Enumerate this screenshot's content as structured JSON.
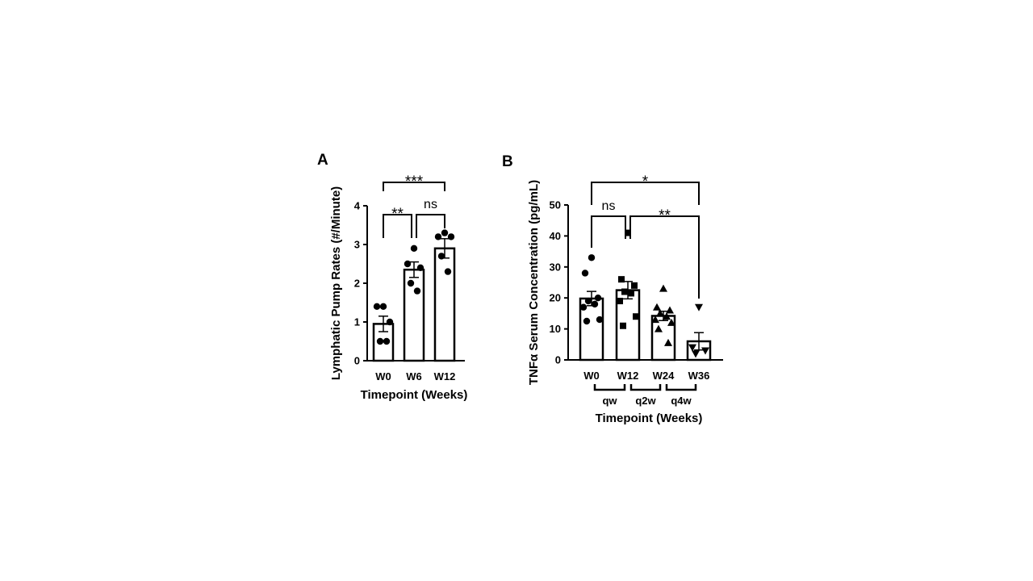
{
  "figure": {
    "panel_a_label": "A",
    "panel_b_label": "B"
  },
  "chart_data": [
    {
      "panel": "A",
      "type": "bar",
      "categories": [
        "W0",
        "W6",
        "W12"
      ],
      "values": [
        0.95,
        2.35,
        2.9
      ],
      "error": [
        0.2,
        0.2,
        0.25
      ],
      "points": [
        [
          1.4,
          1.4,
          1.0,
          0.5,
          0.5
        ],
        [
          2.9,
          2.5,
          2.4,
          2.0,
          1.8
        ],
        [
          3.3,
          3.2,
          3.2,
          2.7,
          2.3
        ]
      ],
      "xlabel": "Timepoint (Weeks)",
      "ylabel": "Lymphatic Pump Rates (#/Minute)",
      "ylim": [
        0,
        4
      ],
      "yticks": [
        "0",
        "1",
        "2",
        "3",
        "4"
      ],
      "marker": "circle",
      "comparisons": [
        {
          "from": "W0",
          "to": "W6",
          "label": "**"
        },
        {
          "from": "W6",
          "to": "W12",
          "label": "ns"
        },
        {
          "from": "W0",
          "to": "W12",
          "label": "***"
        }
      ]
    },
    {
      "panel": "B",
      "type": "bar",
      "categories": [
        "W0",
        "W12",
        "W24",
        "W36"
      ],
      "values": [
        19.8,
        22.5,
        14.2,
        6.0
      ],
      "error": [
        2.3,
        2.8,
        1.5,
        2.8
      ],
      "points": [
        [
          33,
          28,
          20,
          19,
          18,
          17,
          13,
          12.5
        ],
        [
          41,
          26,
          24,
          22,
          21.5,
          19,
          14,
          11
        ],
        [
          23,
          17,
          16,
          15,
          14,
          13,
          12,
          10,
          5.5
        ],
        [
          17,
          4,
          3,
          2
        ]
      ],
      "markers": [
        "circle",
        "square",
        "triangle-up",
        "triangle-down"
      ],
      "xlabel": "Timepoint (Weeks)",
      "ylabel": "TNFα Serum Concentration (pg/mL)",
      "ylim": [
        0,
        50
      ],
      "yticks": [
        "0",
        "10",
        "20",
        "30",
        "40",
        "50"
      ],
      "dosing_groups": [
        {
          "from": "W0",
          "to": "W12",
          "label": "qw"
        },
        {
          "from": "W12",
          "to": "W24",
          "label": "q2w"
        },
        {
          "from": "W24",
          "to": "W36",
          "label": "q4w"
        }
      ],
      "comparisons": [
        {
          "from": "W0",
          "to": "W12",
          "label": "ns"
        },
        {
          "from": "W12",
          "to": "W36",
          "label": "**"
        },
        {
          "from": "W0",
          "to": "W36",
          "label": "*"
        }
      ]
    }
  ]
}
